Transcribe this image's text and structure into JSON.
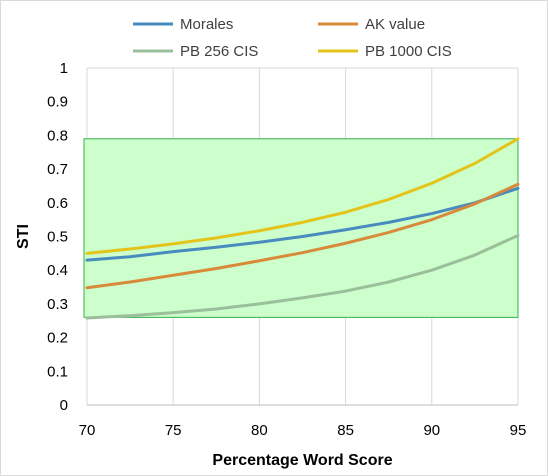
{
  "chart_data": {
    "type": "line",
    "xlabel": "Percentage Word Score",
    "ylabel": "STI",
    "xlim": [
      70,
      95
    ],
    "ylim": [
      0,
      1
    ],
    "x_ticks": [
      "70",
      "75",
      "80",
      "85",
      "90",
      "95"
    ],
    "y_ticks": [
      "0",
      "0.1",
      "0.2",
      "0.3",
      "0.4",
      "0.5",
      "0.6",
      "0.7",
      "0.8",
      "0.9",
      "1"
    ],
    "grid": "vertical",
    "legend_position": "top",
    "shaded_region": {
      "x": [
        70,
        95
      ],
      "y": [
        0.26,
        0.79
      ],
      "color": "#ccffcc",
      "border_color": "#33b04a"
    },
    "series": [
      {
        "name": "Morales",
        "color": "#4a8bbf",
        "x": [
          70,
          72.5,
          75,
          77.5,
          80,
          82.5,
          85,
          87.5,
          90,
          92.5,
          95
        ],
        "y": [
          0.43,
          0.44,
          0.455,
          0.468,
          0.483,
          0.5,
          0.52,
          0.542,
          0.568,
          0.6,
          0.643
        ]
      },
      {
        "name": "AK value",
        "color": "#d88a3a",
        "x": [
          70,
          72.5,
          75,
          77.5,
          80,
          82.5,
          85,
          87.5,
          90,
          92.5,
          95
        ],
        "y": [
          0.348,
          0.365,
          0.385,
          0.405,
          0.428,
          0.452,
          0.48,
          0.512,
          0.55,
          0.597,
          0.655
        ]
      },
      {
        "name": "PB 256 CIS",
        "color": "#9bbf9b",
        "x": [
          70,
          72.5,
          75,
          77.5,
          80,
          82.5,
          85,
          87.5,
          90,
          92.5,
          95
        ],
        "y": [
          0.258,
          0.265,
          0.274,
          0.285,
          0.3,
          0.318,
          0.338,
          0.365,
          0.4,
          0.445,
          0.503
        ]
      },
      {
        "name": "PB 1000 CIS",
        "color": "#e4c41a",
        "x": [
          70,
          72.5,
          75,
          77.5,
          80,
          82.5,
          85,
          87.5,
          90,
          92.5,
          95
        ],
        "y": [
          0.45,
          0.463,
          0.478,
          0.496,
          0.517,
          0.542,
          0.572,
          0.61,
          0.658,
          0.717,
          0.79
        ]
      }
    ]
  }
}
